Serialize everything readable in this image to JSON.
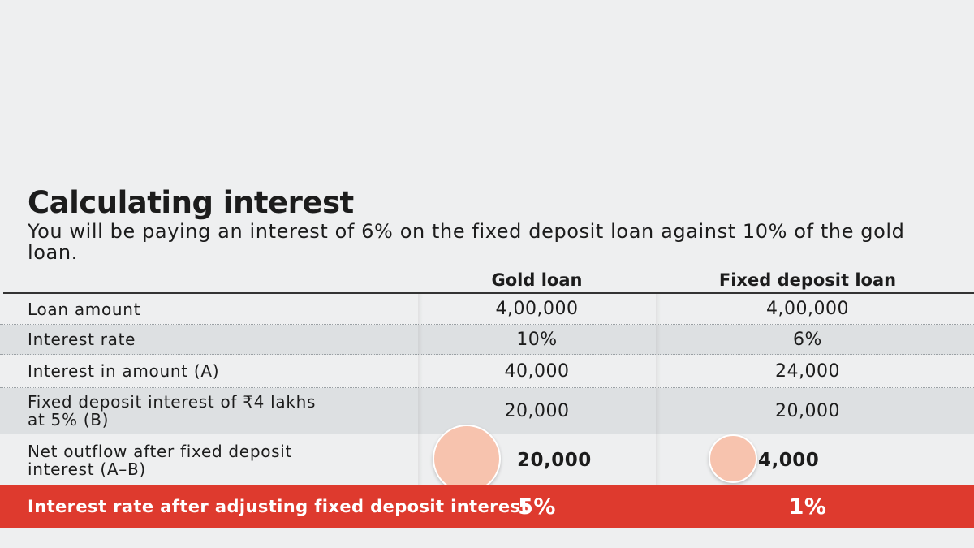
{
  "title": "Calculating interest",
  "subtitle": "You will be paying an interest of 6% on the fixed deposit loan against 10% of the gold loan.",
  "colors": {
    "highlight_row": "#de3a2e",
    "bubble": "#f7c3ae",
    "shaded_row": "#dde0e2"
  },
  "chart_data": {
    "type": "table",
    "columns": [
      "",
      "Gold loan",
      "Fixed deposit loan"
    ],
    "rows": [
      {
        "label": "Loan amount",
        "gold": "4,00,000",
        "fd": "4,00,000"
      },
      {
        "label": "Interest rate",
        "gold": "10%",
        "fd": "6%"
      },
      {
        "label": "Interest in amount (A)",
        "gold": "40,000",
        "fd": "24,000"
      },
      {
        "label": "Fixed deposit interest of ₹4 lakhs at 5% (B)",
        "gold": "20,000",
        "fd": "20,000"
      },
      {
        "label": "Net outflow after fixed deposit interest (A–B)",
        "gold": "20,000",
        "fd": "4,000",
        "bubble_values": [
          20000,
          4000
        ]
      },
      {
        "label": "Interest rate after adjusting fixed deposit interest",
        "gold": "5%",
        "fd": "1%"
      }
    ]
  }
}
